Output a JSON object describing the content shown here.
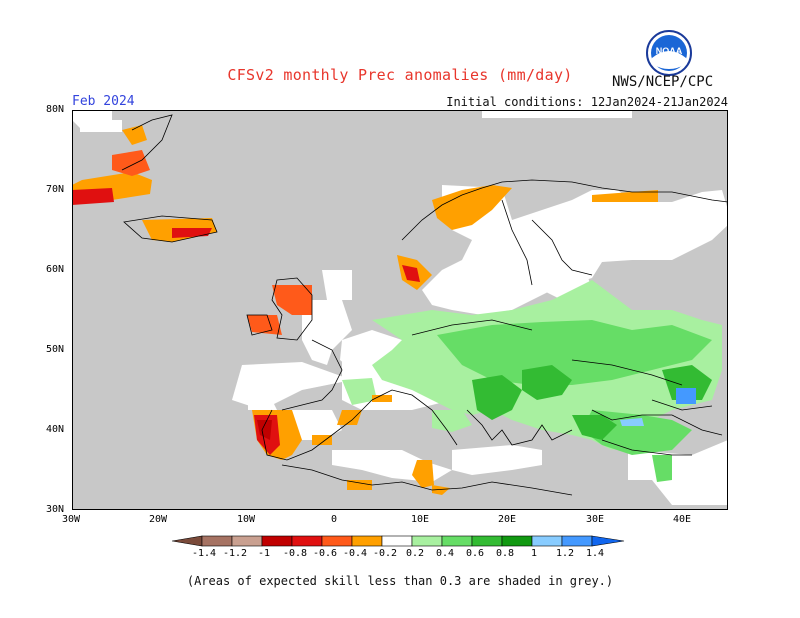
{
  "header": {
    "title": "CFSv2 monthly Prec anomalies (mm/day)",
    "season_label": "Feb 2024",
    "initial_conditions": "Initial conditions: 12Jan2024-21Jan2024",
    "organization": "NWS/NCEP/CPC",
    "logo_text": "NOAA"
  },
  "map": {
    "lat_labels": [
      "80N",
      "70N",
      "60N",
      "50N",
      "40N",
      "30N"
    ],
    "lon_labels": [
      "30W",
      "20W",
      "10W",
      "0",
      "10E",
      "20E",
      "30E",
      "40E"
    ]
  },
  "legend": {
    "tick_labels": [
      "-1.4",
      "-1.2",
      "-1",
      "-0.8",
      "-0.6",
      "-0.4",
      "-0.2",
      "0.2",
      "0.4",
      "0.6",
      "0.8",
      "1",
      "1.2",
      "1.4"
    ],
    "colors": {
      "lt-1.4": "#7a4a3a",
      "m1.4_m1.2": "#a67363",
      "m1.2_m1": "#c9a090",
      "m1_m08": "#c00000",
      "m08_m06": "#e01010",
      "m06_m04": "#ff5a1a",
      "m04_m02": "#ffa000",
      "neutral": "#ffffff",
      "p02_p04": "#a8f0a0",
      "p04_p06": "#66dd66",
      "p06_p08": "#33bb33",
      "p08_p1": "#119911",
      "p1_p12": "#88ccff",
      "p12_p14": "#4499ff",
      "gt1.4": "#1166ee"
    }
  },
  "footnote": "(Areas of expected skill less than 0.3 are shaded in grey.)"
}
